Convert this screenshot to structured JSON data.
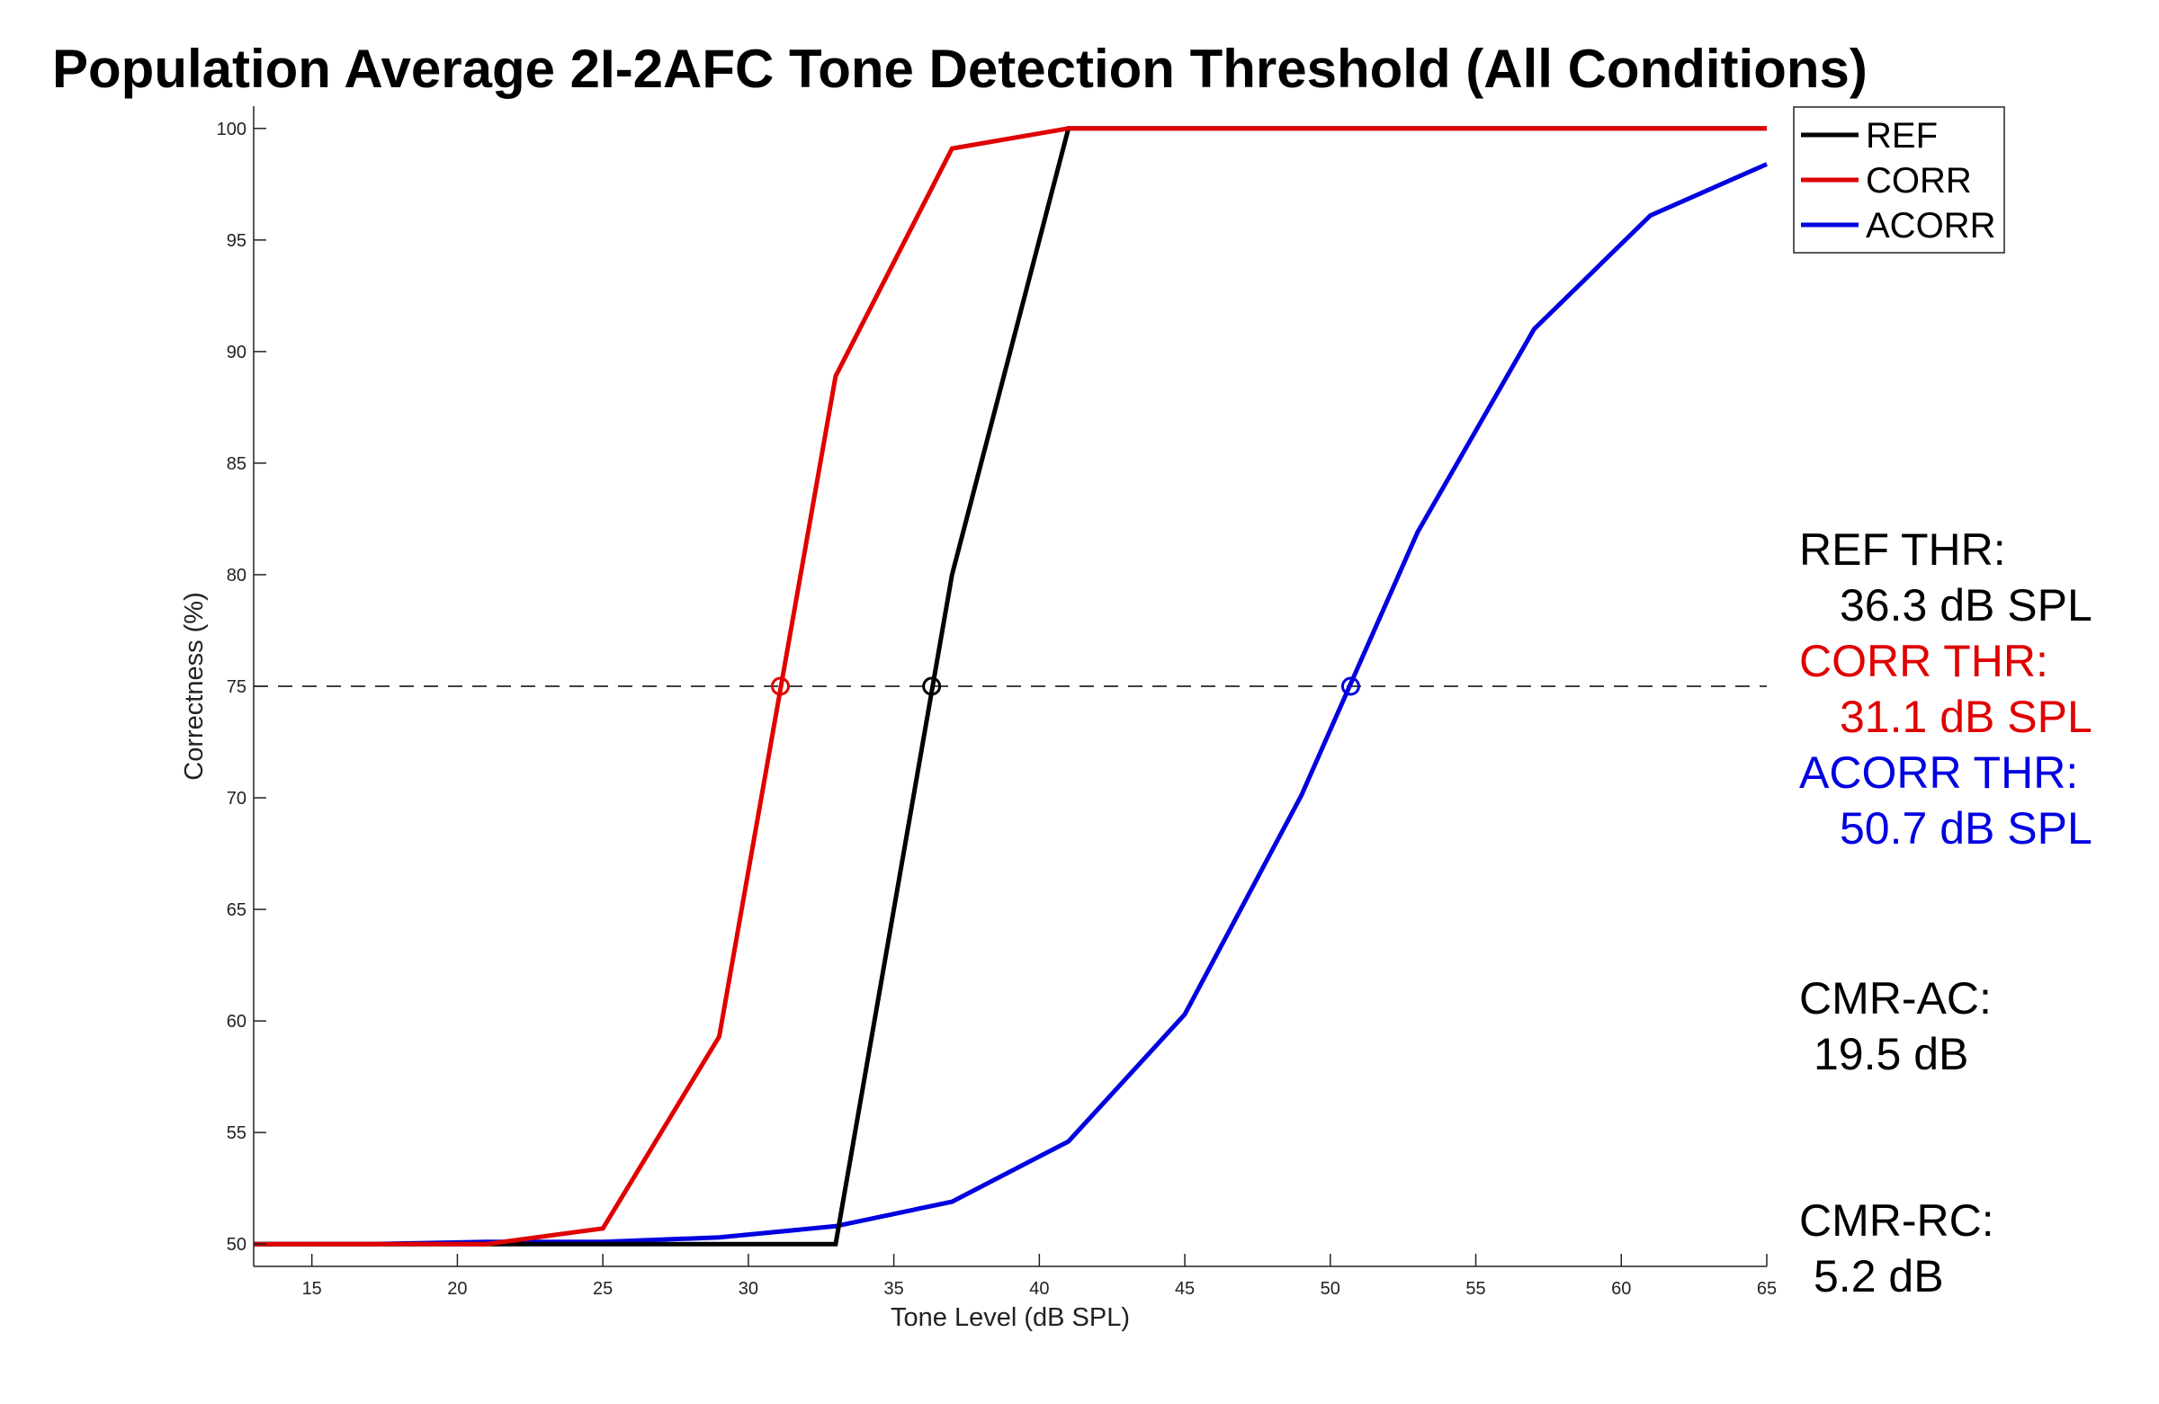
{
  "chart_data": {
    "type": "line",
    "title": "Population Average 2I-2AFC Tone Detection Threshold (All Conditions)",
    "xlabel": "Tone Level (dB SPL)",
    "ylabel": "Correctness (%)",
    "xlim": [
      13,
      65
    ],
    "ylim": [
      49,
      101
    ],
    "xticks": [
      15,
      20,
      25,
      30,
      35,
      40,
      45,
      50,
      55,
      60,
      65
    ],
    "yticks": [
      50,
      55,
      60,
      65,
      70,
      75,
      80,
      85,
      90,
      95,
      100
    ],
    "grid": false,
    "legend_position": "top-right",
    "series": [
      {
        "name": "REF",
        "color": "#000000",
        "points": [
          [
            13,
            50
          ],
          [
            17,
            50
          ],
          [
            21,
            50
          ],
          [
            25,
            50
          ],
          [
            29,
            50
          ],
          [
            33,
            50
          ],
          [
            37,
            80
          ],
          [
            41,
            100
          ],
          [
            45,
            100
          ],
          [
            49,
            100
          ],
          [
            53,
            100
          ],
          [
            57,
            100
          ],
          [
            61,
            100
          ],
          [
            65,
            100
          ]
        ]
      },
      {
        "name": "CORR",
        "color": "#e00000",
        "points": [
          [
            13,
            50
          ],
          [
            17,
            50
          ],
          [
            21,
            50
          ],
          [
            25,
            50.7
          ],
          [
            29,
            59.3
          ],
          [
            33,
            88.9
          ],
          [
            37,
            99.1
          ],
          [
            41,
            100
          ],
          [
            45,
            100
          ],
          [
            49,
            100
          ],
          [
            53,
            100
          ],
          [
            57,
            100
          ],
          [
            61,
            100
          ],
          [
            65,
            100
          ]
        ]
      },
      {
        "name": "ACORR",
        "color": "#0000e0",
        "points": [
          [
            13,
            50
          ],
          [
            17,
            50
          ],
          [
            21,
            50.1
          ],
          [
            25,
            50.1
          ],
          [
            29,
            50.3
          ],
          [
            33,
            50.8
          ],
          [
            37,
            51.9
          ],
          [
            41,
            54.6
          ],
          [
            45,
            60.3
          ],
          [
            49,
            70.1
          ],
          [
            53,
            81.9
          ],
          [
            57,
            91
          ],
          [
            61,
            96.1
          ],
          [
            65,
            98.4
          ]
        ]
      }
    ],
    "reference_line": {
      "y": 75,
      "style": "dashed",
      "color": "#000000"
    },
    "threshold_markers": [
      {
        "series": "CORR",
        "x": 31.1,
        "y": 75,
        "color": "#e00000"
      },
      {
        "series": "REF",
        "x": 36.3,
        "y": 75,
        "color": "#000000"
      },
      {
        "series": "ACORR",
        "x": 50.7,
        "y": 75,
        "color": "#0000e0"
      }
    ],
    "annotations": [
      {
        "name": "ref-thr",
        "label": "REF THR:",
        "value": "36.3 dB SPL",
        "color": "#000000"
      },
      {
        "name": "corr-thr",
        "label": "CORR THR:",
        "value": "31.1 dB SPL",
        "color": "#e00000"
      },
      {
        "name": "acorr-thr",
        "label": "ACORR THR:",
        "value": "50.7 dB SPL",
        "color": "#0000e0"
      },
      {
        "name": "cmr-ac",
        "label": "CMR-AC:",
        "value": "19.5 dB",
        "color": "#000000"
      },
      {
        "name": "cmr-rc",
        "label": "CMR-RC:",
        "value": "5.2 dB",
        "color": "#000000"
      }
    ]
  }
}
